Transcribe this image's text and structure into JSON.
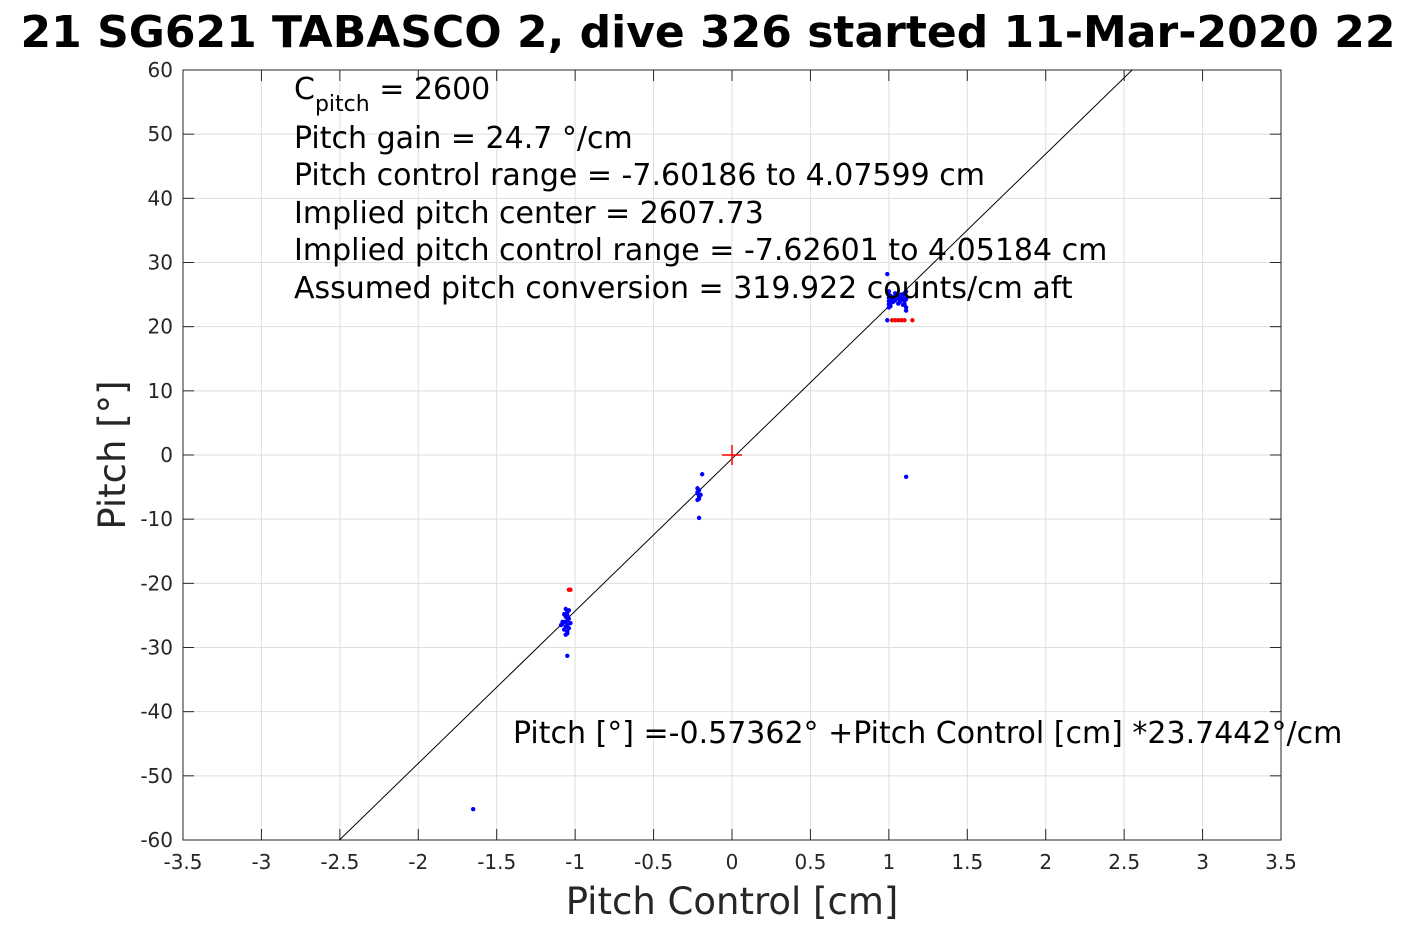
{
  "chart_data": {
    "type": "scatter",
    "title": "21 SG621 TABASCO 2, dive 326 started 11-Mar-2020 22",
    "xlabel": "Pitch Control [cm]",
    "ylabel": "Pitch [°]",
    "xlim": [
      -3.5,
      3.5
    ],
    "ylim": [
      -60,
      60
    ],
    "xticks": [
      -3.5,
      -3,
      -2.5,
      -2,
      -1.5,
      -1,
      -0.5,
      0,
      0.5,
      1,
      1.5,
      2,
      2.5,
      3,
      3.5
    ],
    "yticks": [
      -60,
      -50,
      -40,
      -30,
      -20,
      -10,
      0,
      10,
      20,
      30,
      40,
      50,
      60
    ],
    "xtick_labels": [
      "-3.5",
      "-3",
      "-2.5",
      "-2",
      "-1.5",
      "-1",
      "-0.5",
      "0",
      "0.5",
      "1",
      "1.5",
      "2",
      "2.5",
      "3",
      "3.5"
    ],
    "ytick_labels": [
      "-60",
      "-50",
      "-40",
      "-30",
      "-20",
      "-10",
      "0",
      "10",
      "20",
      "30",
      "40",
      "50",
      "60"
    ],
    "grid": true,
    "annotations": {
      "c_pitch_main": "C",
      "c_pitch_sub": "pitch",
      "c_pitch_value": " = 2600",
      "lines": [
        "Pitch gain = 24.7 °/cm",
        "Pitch control range = -7.60186 to 4.07599 cm",
        "Implied pitch center = 2607.73",
        "Implied pitch control range = -7.62601 to 4.05184 cm",
        "Assumed pitch conversion = 319.922 counts/cm aft"
      ],
      "fit_equation": "Pitch [°] =-0.57362° +Pitch Control [cm] *23.7442°/cm"
    },
    "fit_line": {
      "intercept": -0.57362,
      "slope": 23.7442,
      "color": "#000000"
    },
    "center_marker": {
      "x": 0,
      "y": 0,
      "color": "#ff0000"
    },
    "series": [
      {
        "color": "#0000ff",
        "points": [
          [
            -1.65,
            -55.2
          ],
          [
            -1.05,
            -31.3
          ],
          [
            -1.06,
            -28.0
          ],
          [
            -1.05,
            -27.5
          ],
          [
            -1.07,
            -27.2
          ],
          [
            -1.06,
            -26.8
          ],
          [
            -1.05,
            -26.5
          ],
          [
            -1.08,
            -26.3
          ],
          [
            -1.06,
            -26.0
          ],
          [
            -1.05,
            -25.8
          ],
          [
            -1.04,
            -25.5
          ],
          [
            -1.06,
            -25.2
          ],
          [
            -1.05,
            -25.0
          ],
          [
            -1.07,
            -24.8
          ],
          [
            -1.05,
            -24.5
          ],
          [
            -1.04,
            -24.2
          ],
          [
            -1.06,
            -24.0
          ],
          [
            -1.09,
            -26.5
          ],
          [
            -1.08,
            -26.0
          ],
          [
            -1.04,
            -27.0
          ],
          [
            -1.03,
            -26.2
          ],
          [
            -1.05,
            -27.8
          ],
          [
            -0.21,
            -9.8
          ],
          [
            -0.22,
            -7.0
          ],
          [
            -0.21,
            -6.5
          ],
          [
            -0.22,
            -6.0
          ],
          [
            -0.21,
            -5.5
          ],
          [
            -0.22,
            -5.2
          ],
          [
            -0.21,
            -6.8
          ],
          [
            -0.22,
            -5.8
          ],
          [
            -0.2,
            -6.2
          ],
          [
            -0.19,
            -3.0
          ],
          [
            0.99,
            28.2
          ],
          [
            0.99,
            21.0
          ],
          [
            1.11,
            -3.4
          ],
          [
            1.0,
            25.0
          ],
          [
            1.0,
            24.5
          ],
          [
            1.0,
            24.0
          ],
          [
            1.0,
            23.5
          ],
          [
            1.0,
            23.0
          ],
          [
            1.01,
            24.8
          ],
          [
            1.02,
            24.3
          ],
          [
            1.03,
            24.6
          ],
          [
            1.04,
            24.1
          ],
          [
            1.05,
            24.9
          ],
          [
            1.06,
            24.4
          ],
          [
            1.07,
            24.7
          ],
          [
            1.08,
            24.2
          ],
          [
            1.09,
            24.5
          ],
          [
            1.1,
            24.0
          ],
          [
            1.1,
            25.0
          ],
          [
            1.1,
            23.5
          ],
          [
            1.11,
            24.3
          ],
          [
            1.11,
            23.0
          ],
          [
            1.11,
            22.5
          ],
          [
            1.11,
            25.5
          ],
          [
            1.02,
            23.8
          ],
          [
            1.04,
            25.2
          ],
          [
            1.06,
            23.6
          ],
          [
            1.08,
            25.0
          ],
          [
            1.0,
            25.5
          ],
          [
            1.01,
            23.2
          ],
          [
            1.09,
            23.4
          ],
          [
            1.03,
            23.9
          ],
          [
            1.07,
            23.9
          ]
        ]
      },
      {
        "color": "#ff0000",
        "points": [
          [
            -1.03,
            -21.0
          ],
          [
            -1.04,
            -21.0
          ],
          [
            1.04,
            21.0
          ],
          [
            1.06,
            21.0
          ],
          [
            1.08,
            21.0
          ],
          [
            1.1,
            21.0
          ],
          [
            1.15,
            21.0
          ],
          [
            1.02,
            21.0
          ]
        ]
      }
    ]
  }
}
